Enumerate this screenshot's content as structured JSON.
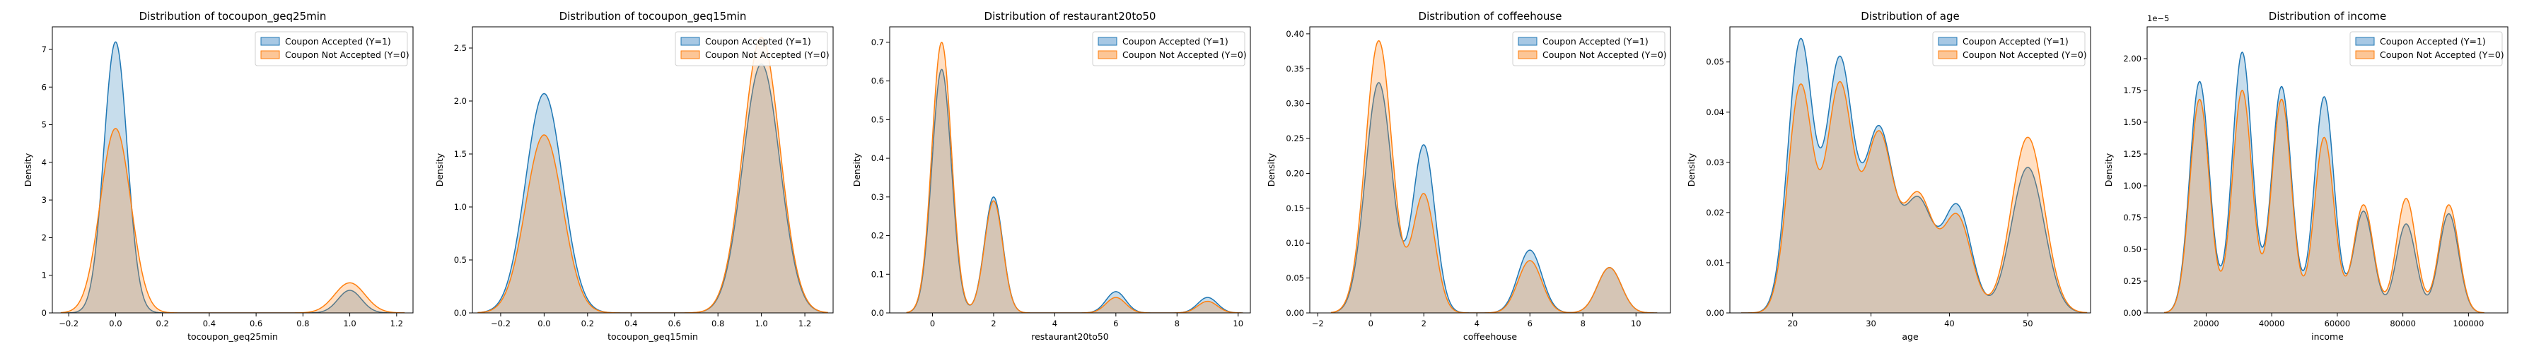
{
  "colors": {
    "accepted": "#1f77b4",
    "not_accepted": "#ff7f0e",
    "accepted_fill": "#a7c8e4",
    "not_accepted_fill": "#fcc697"
  },
  "chart_data": [
    {
      "type": "area",
      "title": "Distribution of tocoupon_geq25min",
      "xlabel": "tocoupon_geq25min",
      "ylabel": "Density",
      "xlim": [
        -0.27,
        1.27
      ],
      "ylim": [
        0,
        7.6
      ],
      "xticks": [
        -0.2,
        0.0,
        0.2,
        0.4,
        0.6,
        0.8,
        1.0,
        1.2
      ],
      "xtick_labels": [
        "−0.2",
        "0.0",
        "0.2",
        "0.4",
        "0.6",
        "0.8",
        "1.0",
        "1.2"
      ],
      "yticks": [
        0,
        1,
        2,
        3,
        4,
        5,
        6,
        7
      ],
      "ytick_labels": [
        "0",
        "1",
        "2",
        "3",
        "4",
        "5",
        "6",
        "7"
      ],
      "legend": [
        "Coupon Accepted (Y=1)",
        "Coupon Not Accepted (Y=0)"
      ],
      "series": [
        {
          "name": "Coupon Accepted (Y=1)",
          "peaks": [
            {
              "x": 0,
              "height": 7.2,
              "sd": 0.05
            },
            {
              "x": 1,
              "height": 0.6,
              "sd": 0.05
            }
          ]
        },
        {
          "name": "Coupon Not Accepted (Y=0)",
          "peaks": [
            {
              "x": 0,
              "height": 4.9,
              "sd": 0.065
            },
            {
              "x": 1,
              "height": 0.8,
              "sd": 0.065
            }
          ]
        }
      ]
    },
    {
      "type": "area",
      "title": "Distribution of tocoupon_geq15min",
      "xlabel": "tocoupon_geq15min",
      "ylabel": "Density",
      "xlim": [
        -0.33,
        1.33
      ],
      "ylim": [
        0,
        2.7
      ],
      "xticks": [
        -0.2,
        0.0,
        0.2,
        0.4,
        0.6,
        0.8,
        1.0,
        1.2
      ],
      "xtick_labels": [
        "−0.2",
        "0.0",
        "0.2",
        "0.4",
        "0.6",
        "0.8",
        "1.0",
        "1.2"
      ],
      "yticks": [
        0,
        0.5,
        1.0,
        1.5,
        2.0,
        2.5
      ],
      "ytick_labels": [
        "0.0",
        "0.5",
        "1.0",
        "1.5",
        "2.0",
        "2.5"
      ],
      "legend": [
        "Coupon Accepted (Y=1)",
        "Coupon Not Accepted (Y=0)"
      ],
      "series": [
        {
          "name": "Coupon Accepted (Y=1)",
          "peaks": [
            {
              "x": 0,
              "height": 2.07,
              "sd": 0.085
            },
            {
              "x": 1,
              "height": 2.35,
              "sd": 0.085
            }
          ]
        },
        {
          "name": "Coupon Not Accepted (Y=0)",
          "peaks": [
            {
              "x": 0,
              "height": 1.68,
              "sd": 0.085
            },
            {
              "x": 1,
              "height": 2.6,
              "sd": 0.085
            }
          ]
        }
      ]
    },
    {
      "type": "area",
      "title": "Distribution of restaurant20to50",
      "xlabel": "restaurant20to50",
      "ylabel": "Density",
      "xlim": [
        -1.4,
        10.4
      ],
      "ylim": [
        0,
        0.74
      ],
      "xticks": [
        0,
        2,
        4,
        6,
        8,
        10
      ],
      "xtick_labels": [
        "0",
        "2",
        "4",
        "6",
        "8",
        "10"
      ],
      "yticks": [
        0,
        0.1,
        0.2,
        0.3,
        0.4,
        0.5,
        0.6,
        0.7
      ],
      "ytick_labels": [
        "0.0",
        "0.1",
        "0.2",
        "0.3",
        "0.4",
        "0.5",
        "0.6",
        "0.7"
      ],
      "legend": [
        "Coupon Accepted (Y=1)",
        "Coupon Not Accepted (Y=0)"
      ],
      "series": [
        {
          "name": "Coupon Accepted (Y=1)",
          "peaks": [
            {
              "x": 0.3,
              "height": 0.63,
              "sd": 0.32
            },
            {
              "x": 2,
              "height": 0.3,
              "sd": 0.3
            },
            {
              "x": 6,
              "height": 0.055,
              "sd": 0.32
            },
            {
              "x": 9,
              "height": 0.04,
              "sd": 0.32
            }
          ]
        },
        {
          "name": "Coupon Not Accepted (Y=0)",
          "peaks": [
            {
              "x": 0.3,
              "height": 0.7,
              "sd": 0.32
            },
            {
              "x": 2,
              "height": 0.29,
              "sd": 0.3
            },
            {
              "x": 6,
              "height": 0.04,
              "sd": 0.32
            },
            {
              "x": 9,
              "height": 0.03,
              "sd": 0.32
            }
          ]
        }
      ]
    },
    {
      "type": "area",
      "title": "Distribution of coffeehouse",
      "xlabel": "coffeehouse",
      "ylabel": "Density",
      "xlim": [
        -2.3,
        11.3
      ],
      "ylim": [
        0,
        0.41
      ],
      "xticks": [
        -2,
        0,
        2,
        4,
        6,
        8,
        10
      ],
      "xtick_labels": [
        "−2",
        "0",
        "2",
        "4",
        "6",
        "8",
        "10"
      ],
      "yticks": [
        0,
        0.05,
        0.1,
        0.15,
        0.2,
        0.25,
        0.3,
        0.35,
        0.4
      ],
      "ytick_labels": [
        "0.00",
        "0.05",
        "0.10",
        "0.15",
        "0.20",
        "0.25",
        "0.30",
        "0.35",
        "0.40"
      ],
      "legend": [
        "Coupon Accepted (Y=1)",
        "Coupon Not Accepted (Y=0)"
      ],
      "series": [
        {
          "name": "Coupon Accepted (Y=1)",
          "peaks": [
            {
              "x": 0.3,
              "height": 0.33,
              "sd": 0.5
            },
            {
              "x": 2,
              "height": 0.24,
              "sd": 0.42
            },
            {
              "x": 6,
              "height": 0.09,
              "sd": 0.45
            },
            {
              "x": 9,
              "height": 0.065,
              "sd": 0.45
            }
          ]
        },
        {
          "name": "Coupon Not Accepted (Y=0)",
          "peaks": [
            {
              "x": 0.3,
              "height": 0.39,
              "sd": 0.5
            },
            {
              "x": 2,
              "height": 0.17,
              "sd": 0.42
            },
            {
              "x": 6,
              "height": 0.075,
              "sd": 0.45
            },
            {
              "x": 9,
              "height": 0.065,
              "sd": 0.45
            }
          ]
        }
      ]
    },
    {
      "type": "area",
      "title": "Distribution of age",
      "xlabel": "age",
      "ylabel": "Density",
      "xlim": [
        12,
        58
      ],
      "ylim": [
        0,
        0.057
      ],
      "xticks": [
        20,
        30,
        40,
        50
      ],
      "xtick_labels": [
        "20",
        "30",
        "40",
        "50"
      ],
      "yticks": [
        0,
        0.01,
        0.02,
        0.03,
        0.04,
        0.05
      ],
      "ytick_labels": [
        "0.00",
        "0.01",
        "0.02",
        "0.03",
        "0.04",
        "0.05"
      ],
      "legend": [
        "Coupon Accepted (Y=1)",
        "Coupon Not Accepted (Y=0)"
      ],
      "series": [
        {
          "name": "Coupon Accepted (Y=1)",
          "peaks": [
            {
              "x": 21,
              "height": 0.054,
              "sd": 1.6
            },
            {
              "x": 26,
              "height": 0.05,
              "sd": 1.7
            },
            {
              "x": 31,
              "height": 0.036,
              "sd": 1.8
            },
            {
              "x": 36,
              "height": 0.022,
              "sd": 1.9
            },
            {
              "x": 41,
              "height": 0.021,
              "sd": 1.8
            },
            {
              "x": 50,
              "height": 0.029,
              "sd": 2.1
            }
          ]
        },
        {
          "name": "Coupon Not Accepted (Y=0)",
          "peaks": [
            {
              "x": 21,
              "height": 0.045,
              "sd": 1.6
            },
            {
              "x": 26,
              "height": 0.045,
              "sd": 1.7
            },
            {
              "x": 31,
              "height": 0.035,
              "sd": 1.8
            },
            {
              "x": 36,
              "height": 0.023,
              "sd": 1.9
            },
            {
              "x": 41,
              "height": 0.019,
              "sd": 1.8
            },
            {
              "x": 50,
              "height": 0.035,
              "sd": 2.1
            }
          ]
        }
      ]
    },
    {
      "type": "area",
      "title": "Distribution of income",
      "xlabel": "income",
      "ylabel": "Density",
      "offset_text": "1e−5",
      "xlim": [
        2000,
        112000
      ],
      "ylim": [
        0,
        2.25
      ],
      "xticks": [
        20000,
        40000,
        60000,
        80000,
        100000
      ],
      "xtick_labels": [
        "20000",
        "40000",
        "60000",
        "80000",
        "100000"
      ],
      "yticks": [
        0,
        0.25,
        0.5,
        0.75,
        1.0,
        1.25,
        1.5,
        1.75,
        2.0
      ],
      "ytick_labels": [
        "0.00",
        "0.25",
        "0.50",
        "0.75",
        "1.00",
        "1.25",
        "1.50",
        "1.75",
        "2.00"
      ],
      "legend": [
        "Coupon Accepted (Y=1)",
        "Coupon Not Accepted (Y=0)"
      ],
      "series": [
        {
          "name": "Coupon Accepted (Y=1)",
          "peaks": [
            {
              "x": 18000,
              "height": 1.82,
              "sd": 3000
            },
            {
              "x": 31000,
              "height": 2.05,
              "sd": 3000
            },
            {
              "x": 43000,
              "height": 1.78,
              "sd": 3000
            },
            {
              "x": 56000,
              "height": 1.7,
              "sd": 3000
            },
            {
              "x": 68000,
              "height": 0.8,
              "sd": 3000
            },
            {
              "x": 81000,
              "height": 0.7,
              "sd": 3000
            },
            {
              "x": 94000,
              "height": 0.78,
              "sd": 3000
            }
          ]
        },
        {
          "name": "Coupon Not Accepted (Y=0)",
          "peaks": [
            {
              "x": 18000,
              "height": 1.68,
              "sd": 3000
            },
            {
              "x": 31000,
              "height": 1.75,
              "sd": 3000
            },
            {
              "x": 43000,
              "height": 1.68,
              "sd": 3000
            },
            {
              "x": 56000,
              "height": 1.38,
              "sd": 3000
            },
            {
              "x": 68000,
              "height": 0.85,
              "sd": 3000
            },
            {
              "x": 81000,
              "height": 0.9,
              "sd": 3000
            },
            {
              "x": 94000,
              "height": 0.85,
              "sd": 3000
            }
          ]
        }
      ]
    }
  ]
}
